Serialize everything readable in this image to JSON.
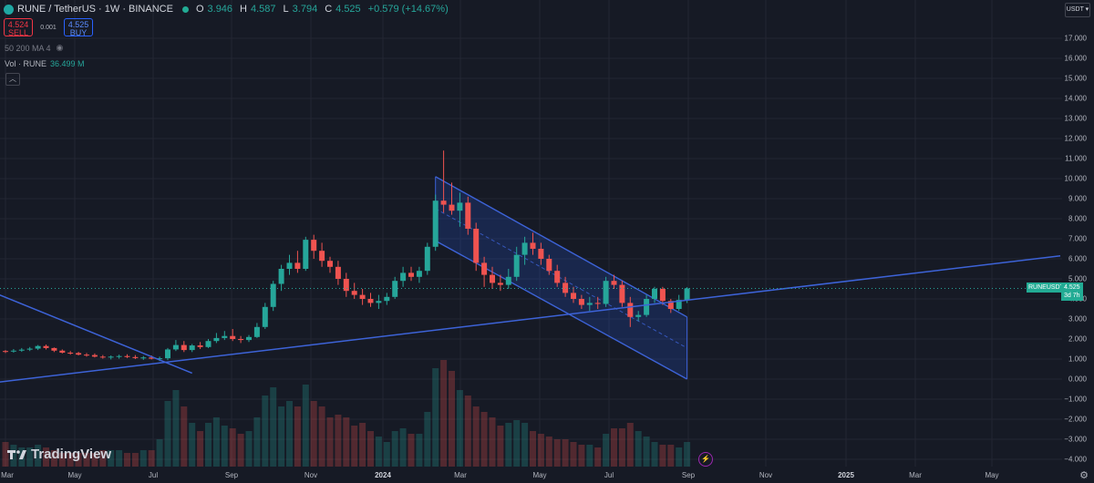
{
  "header": {
    "pair": "RUNE / TetherUS · 1W · BINANCE",
    "ohlc": [
      {
        "k": "O",
        "v": "3.946"
      },
      {
        "k": "H",
        "v": "4.587"
      },
      {
        "k": "L",
        "v": "3.794"
      },
      {
        "k": "C",
        "v": "4.525"
      }
    ],
    "change": "+0.579 (+14.67%)"
  },
  "order": {
    "sell_price": "4.524",
    "sell_label": "SELL",
    "spread": "0.001",
    "buy_price": "4.525",
    "buy_label": "BUY"
  },
  "indicators": {
    "ma": "50 200 MA 4",
    "vol_label": "Vol · RUNE",
    "vol_value": "36.499 M"
  },
  "currency": "USDT",
  "price_label": {
    "symbol": "RUNEUSDT",
    "price": "4.525",
    "countdown": "3d 7h"
  },
  "brand": "TradingView",
  "colors": {
    "up": "#26a69a",
    "down": "#ef5350",
    "line": "#3d63d8",
    "bg": "#161a25"
  },
  "chart_data": {
    "type": "candlestick",
    "interval": "1W",
    "y_ticks": [
      "17.000",
      "16.000",
      "15.000",
      "14.000",
      "13.000",
      "12.000",
      "11.000",
      "10.000",
      "9.000",
      "8.000",
      "7.000",
      "6.000",
      "5.000",
      "4.000",
      "3.000",
      "2.000",
      "1.000",
      "0.000",
      "−1.000",
      "−2.000",
      "−3.000",
      "−4.000"
    ],
    "ylim": [
      -4.5,
      18
    ],
    "x_ticks": [
      {
        "label": "Mar",
        "bold": false
      },
      {
        "label": "May",
        "bold": false
      },
      {
        "label": "Jul",
        "bold": false
      },
      {
        "label": "Sep",
        "bold": false
      },
      {
        "label": "Nov",
        "bold": false
      },
      {
        "label": "2024",
        "bold": true
      },
      {
        "label": "Mar",
        "bold": false
      },
      {
        "label": "May",
        "bold": false
      },
      {
        "label": "Jul",
        "bold": false
      },
      {
        "label": "Sep",
        "bold": false
      },
      {
        "label": "Nov",
        "bold": false
      },
      {
        "label": "2025",
        "bold": true
      },
      {
        "label": "Mar",
        "bold": false
      },
      {
        "label": "May",
        "bold": false
      }
    ],
    "candles": [
      [
        1.4,
        1.45,
        1.3,
        1.38,
        0.9
      ],
      [
        1.38,
        1.5,
        1.32,
        1.42,
        0.8
      ],
      [
        1.42,
        1.55,
        1.36,
        1.47,
        0.7
      ],
      [
        1.47,
        1.6,
        1.4,
        1.52,
        0.7
      ],
      [
        1.52,
        1.7,
        1.45,
        1.65,
        0.8
      ],
      [
        1.65,
        1.72,
        1.48,
        1.55,
        0.7
      ],
      [
        1.55,
        1.58,
        1.35,
        1.42,
        0.6
      ],
      [
        1.42,
        1.48,
        1.28,
        1.32,
        0.5
      ],
      [
        1.32,
        1.4,
        1.22,
        1.3,
        0.5
      ],
      [
        1.3,
        1.36,
        1.18,
        1.22,
        0.5
      ],
      [
        1.22,
        1.3,
        1.12,
        1.2,
        0.5
      ],
      [
        1.2,
        1.28,
        1.08,
        1.12,
        0.5
      ],
      [
        1.12,
        1.2,
        1.02,
        1.08,
        0.6
      ],
      [
        1.08,
        1.18,
        0.98,
        1.12,
        0.6
      ],
      [
        1.12,
        1.22,
        1.02,
        1.15,
        0.6
      ],
      [
        1.15,
        1.24,
        1.05,
        1.1,
        0.5
      ],
      [
        1.1,
        1.2,
        1.0,
        1.05,
        0.5
      ],
      [
        1.05,
        1.15,
        0.96,
        1.08,
        0.6
      ],
      [
        1.08,
        1.18,
        0.98,
        1.02,
        0.6
      ],
      [
        1.02,
        1.12,
        0.9,
        1.04,
        1.0
      ],
      [
        1.04,
        1.55,
        0.95,
        1.48,
        2.4
      ],
      [
        1.48,
        1.95,
        1.4,
        1.7,
        2.8
      ],
      [
        1.7,
        1.9,
        1.35,
        1.45,
        2.2
      ],
      [
        1.45,
        1.75,
        1.35,
        1.68,
        1.6
      ],
      [
        1.68,
        1.85,
        1.5,
        1.6,
        1.3
      ],
      [
        1.6,
        2.0,
        1.55,
        1.9,
        1.6
      ],
      [
        1.9,
        2.3,
        1.8,
        2.05,
        1.8
      ],
      [
        2.05,
        2.4,
        1.95,
        2.15,
        1.5
      ],
      [
        2.15,
        2.5,
        1.9,
        2.0,
        1.4
      ],
      [
        2.0,
        2.15,
        1.8,
        1.95,
        1.2
      ],
      [
        1.95,
        2.2,
        1.85,
        2.1,
        1.3
      ],
      [
        2.1,
        2.8,
        2.05,
        2.6,
        1.8
      ],
      [
        2.6,
        3.8,
        2.5,
        3.6,
        2.6
      ],
      [
        3.6,
        4.9,
        3.4,
        4.75,
        2.9
      ],
      [
        4.75,
        5.7,
        4.4,
        5.5,
        2.2
      ],
      [
        5.5,
        6.2,
        5.2,
        5.8,
        2.4
      ],
      [
        5.8,
        6.4,
        5.3,
        5.5,
        2.2
      ],
      [
        5.5,
        7.1,
        5.4,
        6.95,
        3.0
      ],
      [
        6.95,
        7.2,
        6.0,
        6.4,
        2.4
      ],
      [
        6.4,
        6.8,
        5.6,
        5.9,
        2.2
      ],
      [
        5.9,
        6.1,
        5.3,
        5.6,
        1.8
      ],
      [
        5.6,
        5.9,
        4.7,
        5.0,
        1.9
      ],
      [
        5.0,
        5.3,
        4.1,
        4.4,
        1.8
      ],
      [
        4.4,
        4.8,
        4.0,
        4.2,
        1.5
      ],
      [
        4.2,
        4.5,
        3.7,
        4.0,
        1.6
      ],
      [
        4.0,
        4.3,
        3.6,
        3.8,
        1.3
      ],
      [
        3.8,
        4.2,
        3.5,
        3.9,
        1.1
      ],
      [
        3.9,
        4.3,
        3.7,
        4.1,
        0.9
      ],
      [
        4.1,
        5.1,
        4.0,
        4.9,
        1.3
      ],
      [
        4.9,
        5.6,
        4.6,
        5.3,
        1.4
      ],
      [
        5.3,
        5.6,
        4.9,
        5.1,
        1.2
      ],
      [
        5.1,
        5.6,
        4.8,
        5.4,
        1.2
      ],
      [
        5.4,
        6.8,
        5.2,
        6.6,
        2.0
      ],
      [
        6.6,
        9.2,
        6.4,
        8.9,
        3.6
      ],
      [
        8.9,
        11.4,
        8.3,
        8.7,
        3.9
      ],
      [
        8.7,
        9.8,
        8.2,
        8.4,
        3.5
      ],
      [
        8.4,
        9.3,
        7.6,
        8.8,
        2.8
      ],
      [
        8.8,
        9.1,
        7.2,
        7.5,
        2.6
      ],
      [
        7.5,
        7.8,
        5.4,
        5.8,
        2.2
      ],
      [
        5.8,
        6.1,
        4.6,
        5.2,
        2.0
      ],
      [
        5.2,
        5.6,
        4.5,
        4.8,
        1.8
      ],
      [
        4.8,
        5.2,
        4.4,
        4.7,
        1.5
      ],
      [
        4.7,
        5.5,
        4.5,
        5.1,
        1.6
      ],
      [
        5.1,
        6.6,
        4.9,
        6.2,
        1.7
      ],
      [
        6.2,
        7.1,
        5.7,
        6.8,
        1.6
      ],
      [
        6.8,
        7.3,
        6.2,
        6.5,
        1.3
      ],
      [
        6.5,
        6.8,
        5.7,
        6.0,
        1.2
      ],
      [
        6.0,
        6.2,
        5.2,
        5.4,
        1.1
      ],
      [
        5.4,
        5.7,
        4.6,
        4.8,
        1.0
      ],
      [
        4.8,
        5.1,
        4.1,
        4.3,
        1.0
      ],
      [
        4.3,
        4.6,
        3.8,
        4.0,
        0.9
      ],
      [
        4.0,
        4.2,
        3.5,
        3.7,
        0.8
      ],
      [
        3.7,
        4.1,
        3.4,
        3.8,
        0.8
      ],
      [
        3.8,
        4.1,
        3.5,
        3.75,
        0.7
      ],
      [
        3.75,
        5.1,
        3.6,
        4.9,
        1.2
      ],
      [
        4.9,
        5.2,
        4.5,
        4.7,
        1.4
      ],
      [
        4.7,
        4.9,
        3.6,
        3.8,
        1.4
      ],
      [
        3.8,
        4.1,
        2.6,
        3.1,
        1.6
      ],
      [
        3.1,
        3.4,
        2.9,
        3.2,
        1.3
      ],
      [
        3.2,
        4.2,
        3.1,
        4.0,
        1.1
      ],
      [
        4.0,
        4.6,
        3.8,
        4.5,
        0.9
      ],
      [
        4.5,
        4.6,
        3.7,
        3.9,
        0.8
      ],
      [
        3.9,
        4.0,
        3.3,
        3.5,
        0.8
      ],
      [
        3.5,
        4.2,
        3.4,
        3.95,
        0.7
      ],
      [
        3.946,
        4.587,
        3.794,
        4.525,
        0.9
      ]
    ],
    "trendlines": [
      {
        "name": "descending",
        "from": {
          "i": -5,
          "y": 4.9
        },
        "to": {
          "i": 23,
          "y": 0.3
        }
      },
      {
        "name": "ascending",
        "from": {
          "i": -5,
          "y": -0.35
        },
        "to": {
          "i": 130,
          "y": 6.15
        }
      }
    ],
    "channel": {
      "upper": [
        {
          "i": 53,
          "y": 10.1
        },
        {
          "i": 84,
          "y": 3.1
        }
      ],
      "lower": [
        {
          "i": 53,
          "y": 6.9
        },
        {
          "i": 84,
          "y": 0.0
        }
      ]
    }
  }
}
